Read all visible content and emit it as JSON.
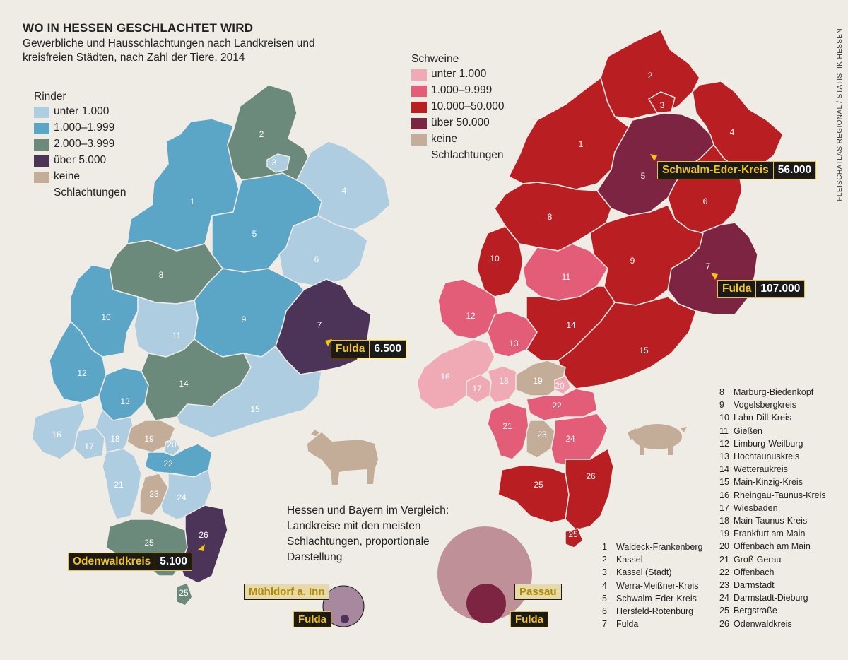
{
  "header": {
    "title": "WO IN HESSEN GESCHLACHTET WIRD",
    "subtitle": "Gewerbliche und Hausschlachtungen nach Landkreisen und kreisfreien Städten, nach Zahl der Tiere, 2014",
    "source": "FLEISCHATLAS REGIONAL / STATISTIK HESSEN"
  },
  "legend_rinder": {
    "title": "Rinder",
    "items": [
      {
        "label": "unter 1.000",
        "color": "#aecde0"
      },
      {
        "label": "1.000–1.999",
        "color": "#5ba6c6"
      },
      {
        "label": "2.000–3.999",
        "color": "#6b8a7c"
      },
      {
        "label": "über 5.000",
        "color": "#4b3458"
      },
      {
        "label": "keine",
        "color": "#c4ad98"
      },
      {
        "label": "Schlachtungen",
        "color": ""
      }
    ]
  },
  "legend_schweine": {
    "title": "Schweine",
    "items": [
      {
        "label": "unter 1.000",
        "color": "#f0aab6"
      },
      {
        "label": "1.000–9.999",
        "color": "#e35d78"
      },
      {
        "label": "10.000–50.000",
        "color": "#b81e22"
      },
      {
        "label": "über 50.000",
        "color": "#7d2442"
      },
      {
        "label": "keine",
        "color": "#c4ad98"
      },
      {
        "label": "Schlachtungen",
        "color": ""
      }
    ]
  },
  "callouts": {
    "rinder_fulda": {
      "name": "Fulda",
      "value": "6.500"
    },
    "rinder_odenwald": {
      "name": "Odenwaldkreis",
      "value": "5.100"
    },
    "schweine_schwalm": {
      "name": "Schwalm-Eder-Kreis",
      "value": "56.000"
    },
    "schweine_fulda": {
      "name": "Fulda",
      "value": "107.000"
    }
  },
  "comparison": {
    "title": "Hessen und Bayern im Vergleich: Landkreise mit den meisten Schlachtungen, proportionale Darstellung",
    "rinder": {
      "big": "Mühldorf a. Inn",
      "small": "Fulda"
    },
    "schweine": {
      "big": "Passau",
      "small": "Fulda"
    }
  },
  "districts_left": [
    "1 Waldeck-Frankenberg",
    "2 Kassel",
    "3 Kassel (Stadt)",
    "4 Werra-Meißner-Kreis",
    "5 Schwalm-Eder-Kreis",
    "6 Hersfeld-Rotenburg",
    "7 Fulda"
  ],
  "district_keys": {
    "left": [
      {
        "n": "1",
        "name": "Waldeck-Frankenberg"
      },
      {
        "n": "2",
        "name": "Kassel"
      },
      {
        "n": "3",
        "name": "Kassel (Stadt)"
      },
      {
        "n": "4",
        "name": "Werra-Meißner-Kreis"
      },
      {
        "n": "5",
        "name": "Schwalm-Eder-Kreis"
      },
      {
        "n": "6",
        "name": "Hersfeld-Rotenburg"
      },
      {
        "n": "7",
        "name": "Fulda"
      }
    ],
    "right": [
      {
        "n": "8",
        "name": "Marburg-Biedenkopf"
      },
      {
        "n": "9",
        "name": "Vogelsbergkreis"
      },
      {
        "n": "10",
        "name": "Lahn-Dill-Kreis"
      },
      {
        "n": "11",
        "name": "Gießen"
      },
      {
        "n": "12",
        "name": "Limburg-Weilburg"
      },
      {
        "n": "13",
        "name": "Hochtaunuskreis"
      },
      {
        "n": "14",
        "name": "Wetteraukreis"
      },
      {
        "n": "15",
        "name": "Main-Kinzig-Kreis"
      },
      {
        "n": "16",
        "name": "Rheingau-Taunus-Kreis"
      },
      {
        "n": "17",
        "name": "Wiesbaden"
      },
      {
        "n": "18",
        "name": "Main-Taunus-Kreis"
      },
      {
        "n": "19",
        "name": "Frankfurt am Main"
      },
      {
        "n": "20",
        "name": "Offenbach am Main"
      },
      {
        "n": "21",
        "name": "Groß-Gerau"
      },
      {
        "n": "22",
        "name": "Offenbach"
      },
      {
        "n": "23",
        "name": "Darmstadt"
      },
      {
        "n": "24",
        "name": "Darmstadt-Dieburg"
      },
      {
        "n": "25",
        "name": "Bergstraße"
      },
      {
        "n": "26",
        "name": "Odenwaldkreis"
      }
    ]
  }
}
